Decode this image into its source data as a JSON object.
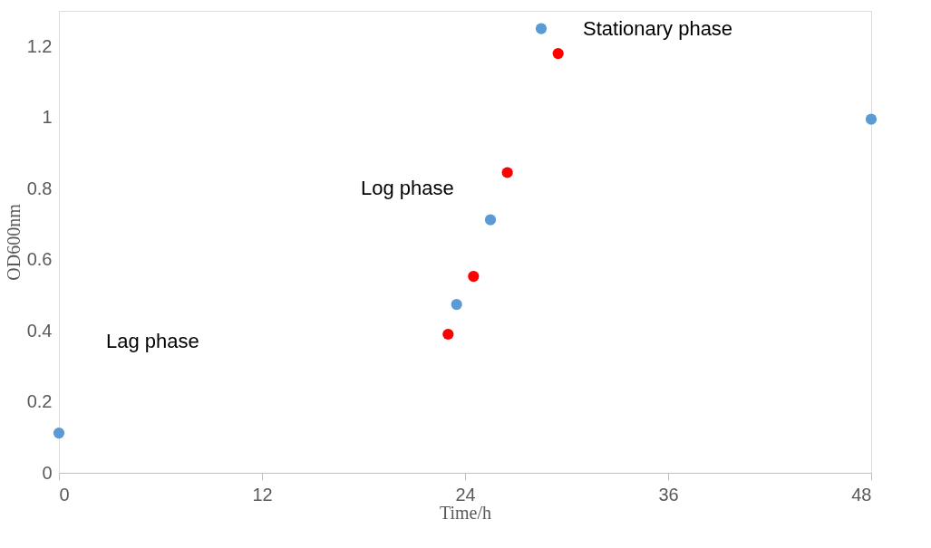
{
  "chart_data": {
    "type": "scatter",
    "xlabel": "Time/h",
    "ylabel": "OD600nm",
    "series": [
      {
        "color": "#5b9bd5",
        "x": [
          0,
          23.5,
          25.5,
          28.5,
          48
        ],
        "values": [
          0.112,
          0.474,
          0.712,
          1.25,
          0.995
        ]
      },
      {
        "color": "#ff0000",
        "x": [
          23.0,
          24.5,
          26.5,
          29.5
        ],
        "values": [
          0.39,
          0.553,
          0.845,
          1.18
        ]
      }
    ],
    "xlim": [
      0,
      48
    ],
    "xticks": [
      0,
      12,
      24,
      36,
      48
    ],
    "ylim": [
      0,
      1.3
    ],
    "yticks": [
      0,
      0.2,
      0.4,
      0.6,
      0.8,
      1,
      1.2
    ],
    "grid": false,
    "legend": false,
    "marker": "circle",
    "annotations": [
      "Lag phase",
      "Log phase",
      "Stationary phase"
    ]
  }
}
